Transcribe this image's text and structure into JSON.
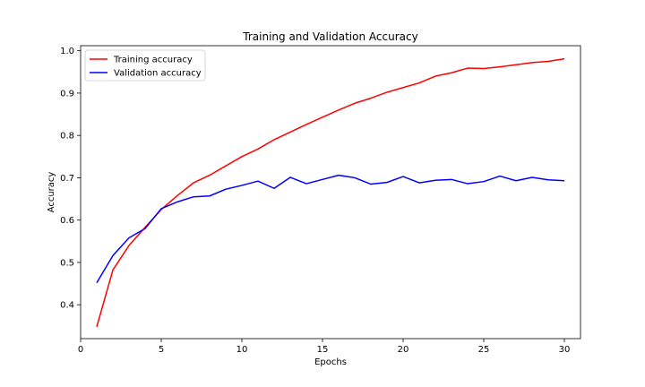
{
  "chart_data": {
    "type": "line",
    "title": "Training and Validation Accuracy",
    "xlabel": "Epochs",
    "ylabel": "Accuracy",
    "xlim": [
      0,
      31
    ],
    "ylim": [
      0.32,
      1.012
    ],
    "xticks": [
      0,
      5,
      10,
      15,
      20,
      25,
      30
    ],
    "yticks": [
      0.4,
      0.5,
      0.6,
      0.7,
      0.8,
      0.9,
      1.0
    ],
    "ytick_labels": [
      "0.4",
      "0.5",
      "0.6",
      "0.7",
      "0.8",
      "0.9",
      "1.0"
    ],
    "legend_position": "top-left",
    "x": [
      1,
      2,
      3,
      4,
      5,
      6,
      7,
      8,
      9,
      10,
      11,
      12,
      13,
      14,
      15,
      16,
      17,
      18,
      19,
      20,
      21,
      22,
      23,
      24,
      25,
      26,
      27,
      28,
      29,
      30
    ],
    "series": [
      {
        "name": "Training accuracy",
        "color": "#ff0000",
        "values": [
          0.348,
          0.482,
          0.54,
          0.583,
          0.625,
          0.658,
          0.688,
          0.706,
          0.728,
          0.75,
          0.768,
          0.79,
          0.808,
          0.826,
          0.843,
          0.86,
          0.876,
          0.888,
          0.902,
          0.913,
          0.924,
          0.94,
          0.948,
          0.959,
          0.958,
          0.962,
          0.967,
          0.972,
          0.975,
          0.981
        ]
      },
      {
        "name": "Validation accuracy",
        "color": "#0000ff",
        "values": [
          0.452,
          0.516,
          0.558,
          0.58,
          0.627,
          0.643,
          0.655,
          0.657,
          0.673,
          0.682,
          0.692,
          0.675,
          0.701,
          0.686,
          0.696,
          0.706,
          0.7,
          0.685,
          0.689,
          0.703,
          0.688,
          0.694,
          0.696,
          0.686,
          0.691,
          0.704,
          0.693,
          0.701,
          0.695,
          0.693
        ]
      }
    ]
  }
}
